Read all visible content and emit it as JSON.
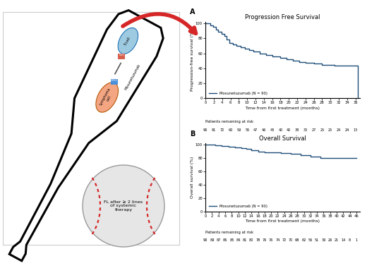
{
  "chart_data": [
    {
      "type": "line",
      "panel_label": "A",
      "title": "Progression Free Survival",
      "x_label": "Time from first treatment (months)",
      "y_label": "Progression-free survival (%)",
      "xlim": [
        0,
        37
      ],
      "ylim": [
        0,
        102
      ],
      "xticks": [
        0,
        2,
        4,
        6,
        8,
        10,
        12,
        14,
        16,
        18,
        20,
        22,
        24,
        26,
        28,
        30,
        32,
        34,
        36
      ],
      "yticks": [
        0,
        20,
        40,
        60,
        80,
        100
      ],
      "line_style": "steps",
      "legend": "lower left",
      "series": [
        {
          "name": "Mosunetuzumab (N = 90)",
          "color": "#1f4e79",
          "x": [
            0,
            1.2,
            1.8,
            2.5,
            3,
            3.8,
            4.5,
            5,
            5.8,
            6.5,
            7.5,
            8.5,
            9.5,
            10.5,
            11.5,
            13,
            14.5,
            16,
            18,
            19.5,
            21,
            22.5,
            24,
            26,
            28,
            31,
            36.5
          ],
          "values": [
            100,
            97,
            95,
            92,
            89,
            86,
            83,
            78,
            74,
            72,
            70,
            68,
            66,
            64,
            62,
            60,
            58,
            56,
            54,
            52,
            50,
            48,
            47,
            46,
            45,
            44,
            0
          ]
        }
      ],
      "at_risk": {
        "label": "Patients remaining at risk",
        "values": [
          90,
          81,
          72,
          60,
          59,
          55,
          47,
          46,
          43,
          40,
          40,
          38,
          30,
          27,
          25,
          25,
          24,
          24,
          13
        ]
      }
    },
    {
      "type": "line",
      "panel_label": "B",
      "title": "Overall Survival",
      "x_label": "Time from first treatment (months)",
      "y_label": "Overall survival (%)",
      "xlim": [
        0,
        47
      ],
      "ylim": [
        0,
        102
      ],
      "xticks": [
        0,
        2,
        4,
        6,
        8,
        10,
        12,
        14,
        16,
        18,
        20,
        22,
        24,
        26,
        28,
        30,
        32,
        34,
        36,
        38,
        40,
        42,
        44,
        46
      ],
      "yticks": [
        0,
        20,
        40,
        60,
        80,
        100
      ],
      "line_style": "steps",
      "legend": "lower left",
      "series": [
        {
          "name": "Mosunetuzumab (N = 90)",
          "color": "#1f4e79",
          "x": [
            0,
            3,
            5,
            7,
            9,
            11,
            12.5,
            14,
            16,
            18,
            20,
            23,
            26,
            29,
            32,
            35,
            46
          ],
          "values": [
            100,
            99,
            98,
            97,
            96,
            95,
            94,
            92,
            90,
            89,
            88,
            87,
            86,
            84,
            82,
            80,
            80
          ]
        }
      ],
      "at_risk": {
        "label": "Patients remaining at risk",
        "values": [
          90,
          89,
          87,
          86,
          85,
          84,
          81,
          80,
          78,
          76,
          76,
          74,
          72,
          70,
          68,
          62,
          56,
          51,
          39,
          26,
          21,
          14,
          8,
          1
        ]
      }
    }
  ],
  "illustration": {
    "t_cell": "T-cell",
    "lymphoma_cell": "Lymphoma cell",
    "cd3": "CD3",
    "cd20": "CD20",
    "antibody": "Mosunetuzumab",
    "ball_text": "FL after ≥ 2 lines of systemic therapy"
  }
}
